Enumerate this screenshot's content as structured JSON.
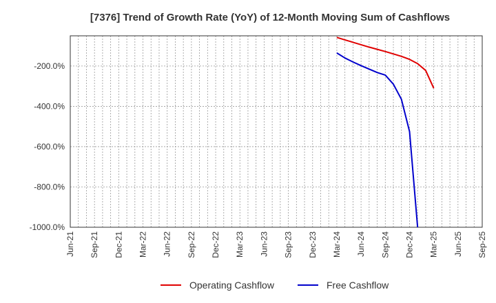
{
  "chart_data": {
    "type": "line",
    "title": "[7376]  Trend of Growth Rate (YoY) of 12-Month Moving Sum of Cashflows",
    "xlabel": "",
    "ylabel": "",
    "x_ticks": [
      "Jun-21",
      "Sep-21",
      "Dec-21",
      "Mar-22",
      "Jun-22",
      "Sep-22",
      "Dec-22",
      "Mar-23",
      "Jun-23",
      "Sep-23",
      "Dec-23",
      "Mar-24",
      "Jun-24",
      "Sep-24",
      "Dec-24",
      "Mar-25",
      "Jun-25",
      "Sep-25"
    ],
    "y_ticks": [
      "-200.0%",
      "-400.0%",
      "-600.0%",
      "-800.0%",
      "-1000.0%"
    ],
    "y_tick_values": [
      -200,
      -400,
      -600,
      -800,
      -1000
    ],
    "ylim": [
      -1000,
      -50
    ],
    "xlim": [
      "2021-06",
      "2025-09"
    ],
    "grid": true,
    "legend_position": "bottom",
    "series": [
      {
        "name": "Operating Cashflow",
        "color": "#e00000",
        "points": [
          [
            "2024-03",
            -58
          ],
          [
            "2024-04",
            -70
          ],
          [
            "2024-05",
            -82
          ],
          [
            "2024-06",
            -94
          ],
          [
            "2024-07",
            -106
          ],
          [
            "2024-08",
            -117
          ],
          [
            "2024-09",
            -128
          ],
          [
            "2024-10",
            -140
          ],
          [
            "2024-11",
            -152
          ],
          [
            "2024-12",
            -167
          ],
          [
            "2025-01",
            -188
          ],
          [
            "2025-02",
            -222
          ],
          [
            "2025-03",
            -310
          ]
        ]
      },
      {
        "name": "Free Cashflow",
        "color": "#0000cc",
        "points": [
          [
            "2024-03",
            -135
          ],
          [
            "2024-04",
            -160
          ],
          [
            "2024-05",
            -180
          ],
          [
            "2024-06",
            -198
          ],
          [
            "2024-07",
            -215
          ],
          [
            "2024-08",
            -232
          ],
          [
            "2024-09",
            -245
          ],
          [
            "2024-10",
            -290
          ],
          [
            "2024-11",
            -365
          ],
          [
            "2024-12",
            -525
          ],
          [
            "2025-01",
            -1000
          ]
        ]
      }
    ]
  }
}
